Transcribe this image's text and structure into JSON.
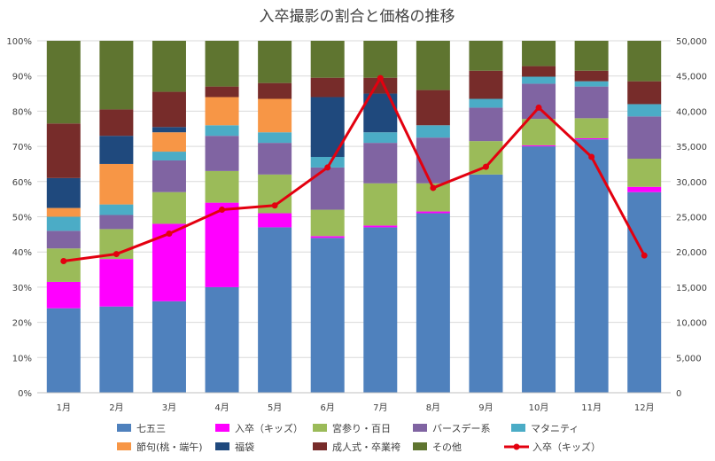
{
  "chart_data": {
    "type": "stacked-bar-percent+line",
    "title": "入卒撮影の割合と価格の推移",
    "categories": [
      "1月",
      "2月",
      "3月",
      "4月",
      "5月",
      "6月",
      "7月",
      "8月",
      "9月",
      "10月",
      "11月",
      "12月"
    ],
    "y_left": {
      "ylim": [
        0,
        100
      ],
      "ticks": [
        "0%",
        "10%",
        "20%",
        "30%",
        "40%",
        "50%",
        "60%",
        "70%",
        "80%",
        "90%",
        "100%"
      ]
    },
    "y_right": {
      "ylim": [
        0,
        50000
      ],
      "ticks": [
        "0",
        "5,000",
        "10,000",
        "15,000",
        "20,000",
        "25,000",
        "30,000",
        "35,000",
        "40,000",
        "45,000",
        "50,000"
      ]
    },
    "series": [
      {
        "name": "七五三",
        "color": "#4F81BD",
        "values": [
          24,
          24.5,
          26,
          30,
          47,
          44,
          47,
          51,
          62,
          70,
          72,
          57
        ]
      },
      {
        "name": "入卒（キッズ）",
        "color": "#FF00FF",
        "values": [
          7.5,
          13.5,
          22,
          24,
          4,
          0.5,
          0.5,
          0.5,
          0,
          0.3,
          0.3,
          1.5
        ]
      },
      {
        "name": "宮参り・百日",
        "color": "#9BBB59",
        "values": [
          9.5,
          8.5,
          9,
          9,
          11,
          7.5,
          12,
          8,
          9.5,
          7.5,
          5.7,
          8
        ]
      },
      {
        "name": "バースデー系",
        "color": "#8064A2",
        "values": [
          5,
          4,
          9,
          10,
          9,
          12,
          11.5,
          13,
          9.5,
          10,
          9,
          12
        ]
      },
      {
        "name": "マタニティ",
        "color": "#4BACC6",
        "values": [
          4,
          3,
          2.5,
          3,
          3,
          3,
          3,
          3.5,
          2.5,
          2,
          1.5,
          3.5
        ]
      },
      {
        "name": "節句(桃・端午)",
        "color": "#F79646",
        "values": [
          2.5,
          11.5,
          5.5,
          8,
          9.5,
          0,
          0,
          0,
          0,
          0,
          0,
          0
        ]
      },
      {
        "name": "福袋",
        "color": "#1F497D",
        "values": [
          8.5,
          8,
          1.5,
          0,
          0,
          17,
          11,
          0,
          0,
          0,
          0,
          0
        ]
      },
      {
        "name": "成人式・卒業袴",
        "color": "#772C2A",
        "values": [
          15.5,
          7.5,
          10,
          3,
          4.5,
          5.5,
          4.5,
          10,
          8,
          3,
          3,
          6.5
        ]
      },
      {
        "name": "その他",
        "color": "#5F7530",
        "values": [
          23.5,
          19.5,
          14.5,
          13,
          12,
          10.5,
          10.5,
          14,
          8.5,
          7.2,
          8.5,
          11.5
        ]
      }
    ],
    "line_series": {
      "name": "入卒（キッズ）",
      "color": "#E3000F",
      "axis": "right",
      "values": [
        18700,
        19700,
        22600,
        26000,
        26600,
        32000,
        44700,
        29100,
        32100,
        40500,
        33500,
        19500
      ]
    }
  },
  "legend_rows": [
    [
      "七五三",
      "入卒（キッズ）",
      "宮参り・百日",
      "バースデー系",
      "マタニティ"
    ],
    [
      "節句(桃・端午)",
      "福袋",
      "成人式・卒業袴",
      "その他",
      "入卒（キッズ）"
    ]
  ]
}
